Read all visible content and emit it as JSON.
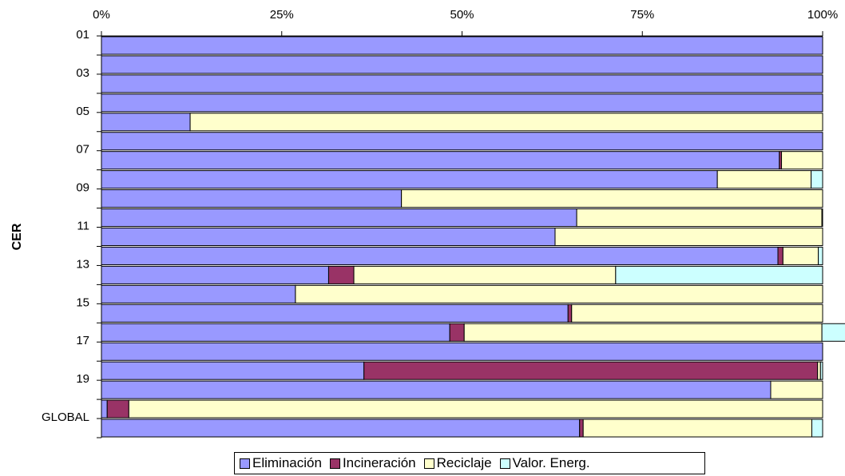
{
  "chart_data": {
    "type": "bar",
    "orientation": "horizontal",
    "stacked": "percent",
    "ylabel": "CER",
    "xlabel": "",
    "xlim": [
      0,
      100
    ],
    "x_ticks": [
      "0%",
      "25%",
      "50%",
      "75%",
      "100%"
    ],
    "x_axis_position": "top",
    "categories": [
      "01",
      "",
      "03",
      "",
      "05",
      "",
      "07",
      "",
      "09",
      "",
      "11",
      "",
      "13",
      "",
      "15",
      "",
      "17",
      "",
      "19",
      "",
      "GLOBAL"
    ],
    "series": [
      {
        "name": "Eliminación",
        "color": "#9999ff",
        "values": [
          100,
          100,
          100,
          100,
          12.3,
          100,
          94,
          85.4,
          41.6,
          65.9,
          62.9,
          93.8,
          31.5,
          26.9,
          64.7,
          48.3,
          100,
          36.4,
          92.8,
          0.8,
          66.3
        ]
      },
      {
        "name": "Incineración",
        "color": "#993366",
        "values": [
          0,
          0,
          0,
          0,
          0,
          0,
          0.3,
          0,
          0,
          0,
          0,
          0.7,
          3.5,
          0,
          0.5,
          2.0,
          0,
          62.9,
          0,
          3.0,
          0.5
        ]
      },
      {
        "name": "Reciclaje",
        "color": "#ffffcc",
        "values": [
          0,
          0,
          0,
          0,
          87.7,
          0,
          5.7,
          13.0,
          58.4,
          34.0,
          37.1,
          4.9,
          36.3,
          73.1,
          34.8,
          49.6,
          0,
          0.4,
          7.2,
          96.2,
          31.7
        ]
      },
      {
        "name": "Valor. Energ.",
        "color": "#ccffff",
        "values": [
          0,
          0,
          0,
          0,
          0,
          0,
          0,
          1.6,
          0,
          0.1,
          0,
          0.6,
          28.7,
          0,
          0,
          4.1,
          0,
          0.3,
          0,
          0,
          1.5
        ]
      }
    ],
    "legend": "bottom",
    "grid": false
  }
}
